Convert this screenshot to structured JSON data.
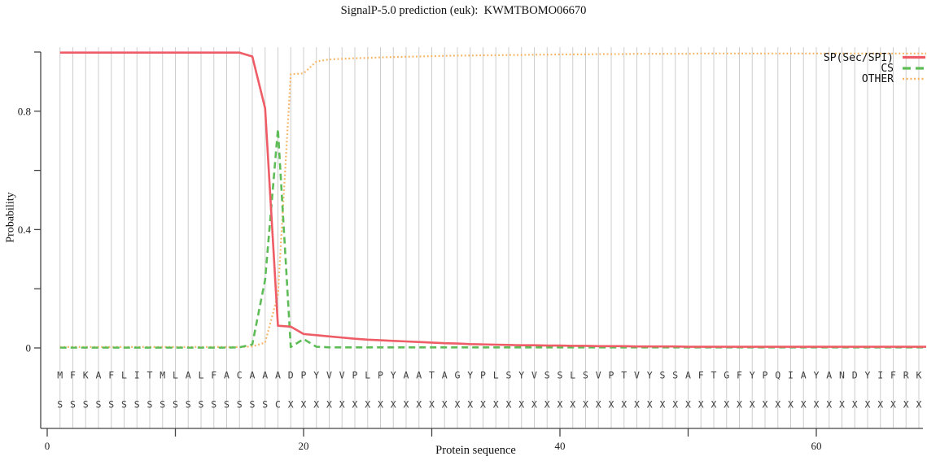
{
  "title": "SignalP-5.0 prediction (euk):  KWMTBOMO06670",
  "axes": {
    "x_label": "Protein sequence",
    "y_label": "Probability",
    "y_ticks": [
      {
        "v": 0,
        "label": "0"
      },
      {
        "v": 0.2,
        "label": ""
      },
      {
        "v": 0.4,
        "label": "0.4"
      },
      {
        "v": 0.6,
        "label": ""
      },
      {
        "v": 0.8,
        "label": "0.8"
      },
      {
        "v": 1,
        "label": ""
      }
    ],
    "x_ticks": [
      {
        "v": 0,
        "label": "0"
      },
      {
        "v": 10,
        "label": ""
      },
      {
        "v": 20,
        "label": "20"
      },
      {
        "v": 30,
        "label": ""
      },
      {
        "v": 40,
        "label": "40"
      },
      {
        "v": 50,
        "label": ""
      },
      {
        "v": 60,
        "label": "60"
      }
    ]
  },
  "legend": {
    "position": "top-right",
    "entries": [
      {
        "label": "SP(Sec/SPI)"
      },
      {
        "label": "CS"
      },
      {
        "label": "OTHER"
      }
    ]
  },
  "sequence": {
    "residues": "MFKAFLITMLALFACAAADPYVVPLPYAATAGYPLSYVSSLSVPTVYSSAFTGFYPQIAYANDYIFRK",
    "annotation": "SSSSSSSSSSSSSSSSSCXXXXXXXXXXXXXXXXXXXXXXXXXXXXXXXXXXXXXXXXXXXXXXXXXX"
  },
  "colors": {
    "sp_red": "#ee5c66",
    "cs_green": "#5fbd58",
    "other_orange": "#f7b35f",
    "grid": "#cdcdcd",
    "axis": "#444444",
    "letters": "#3d3d3d"
  },
  "chart_data": {
    "type": "line",
    "title": "SignalP-5.0 prediction (euk):  KWMTBOMO06670",
    "xlabel": "Protein sequence",
    "ylabel": "Probability",
    "xlim": [
      0,
      68.3
    ],
    "ylim": [
      0,
      1
    ],
    "x_unit": "residue position 1-68 (one value per residue of the sequence)",
    "grid": "one vertical gridline per residue position",
    "legend_position": "top-right inside plot",
    "series": [
      {
        "name": "SP(Sec/SPI)",
        "style": "solid",
        "color": "#ee5c66",
        "values": [
          0.998,
          0.998,
          0.998,
          0.998,
          0.998,
          0.998,
          0.998,
          0.998,
          0.998,
          0.998,
          0.998,
          0.998,
          0.998,
          0.998,
          0.998,
          0.985,
          0.81,
          0.075,
          0.072,
          0.047,
          0.043,
          0.039,
          0.035,
          0.031,
          0.028,
          0.026,
          0.024,
          0.022,
          0.02,
          0.018,
          0.016,
          0.015,
          0.013,
          0.012,
          0.011,
          0.01,
          0.009,
          0.009,
          0.008,
          0.008,
          0.007,
          0.007,
          0.006,
          0.006,
          0.006,
          0.005,
          0.005,
          0.005,
          0.005,
          0.004,
          0.004,
          0.004,
          0.004,
          0.004,
          0.004,
          0.004,
          0.004,
          0.004,
          0.004,
          0.004,
          0.004,
          0.004,
          0.004,
          0.004,
          0.004,
          0.004,
          0.004,
          0.004
        ]
      },
      {
        "name": "CS",
        "style": "dashed",
        "color": "#5fbd58",
        "values": [
          0.001,
          0.001,
          0.001,
          0.001,
          0.001,
          0.001,
          0.001,
          0.001,
          0.001,
          0.001,
          0.001,
          0.001,
          0.001,
          0.001,
          0.002,
          0.012,
          0.23,
          0.74,
          0.003,
          0.03,
          0.004,
          0.002,
          0.002,
          0.002,
          0.002,
          0.002,
          0.002,
          0.002,
          0.002,
          0.002,
          0.002,
          0.002,
          0.002,
          0.002,
          0.002,
          0.002,
          0.002,
          0.002,
          0.002,
          0.002,
          0.002,
          0.002,
          0.002,
          0.002,
          0.002,
          0.002,
          0.002,
          0.002,
          0.002,
          0.002,
          0.002,
          0.002,
          0.002,
          0.002,
          0.002,
          0.002,
          0.002,
          0.002,
          0.002,
          0.002,
          0.002,
          0.002,
          0.002,
          0.002,
          0.002,
          0.002,
          0.002,
          0.002
        ]
      },
      {
        "name": "OTHER",
        "style": "dotted",
        "color": "#f7b35f",
        "values": [
          0.003,
          0.003,
          0.003,
          0.003,
          0.003,
          0.003,
          0.003,
          0.003,
          0.003,
          0.003,
          0.003,
          0.003,
          0.003,
          0.003,
          0.003,
          0.005,
          0.018,
          0.18,
          0.925,
          0.928,
          0.968,
          0.975,
          0.977,
          0.979,
          0.98,
          0.982,
          0.983,
          0.984,
          0.985,
          0.986,
          0.987,
          0.988,
          0.988,
          0.989,
          0.989,
          0.99,
          0.99,
          0.991,
          0.991,
          0.992,
          0.992,
          0.992,
          0.993,
          0.993,
          0.993,
          0.994,
          0.994,
          0.994,
          0.994,
          0.994,
          0.995,
          0.995,
          0.995,
          0.995,
          0.995,
          0.995,
          0.995,
          0.995,
          0.995,
          0.995,
          0.995,
          0.995,
          0.995,
          0.995,
          0.995,
          0.995,
          0.995,
          0.995
        ]
      }
    ]
  }
}
